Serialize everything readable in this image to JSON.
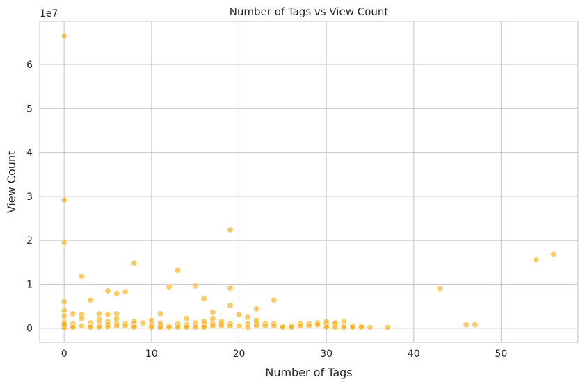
{
  "chart_data": {
    "type": "scatter",
    "title": "Number of Tags vs View Count",
    "xlabel": "Number of Tags",
    "ylabel": "View Count",
    "y_offset_label": "1e7",
    "xlim": [
      -2.8,
      58.8
    ],
    "ylim": [
      -0.32,
      6.98
    ],
    "xticks": [
      0,
      10,
      20,
      30,
      40,
      50
    ],
    "yticks": [
      0,
      1,
      2,
      3,
      4,
      5,
      6
    ],
    "grid": true,
    "color": "#FFA500",
    "x": [
      0,
      0,
      0,
      0,
      0,
      0,
      0,
      0,
      0,
      0,
      0,
      0,
      0,
      1,
      1,
      1,
      1,
      2,
      2,
      2,
      2,
      3,
      3,
      3,
      3,
      4,
      4,
      4,
      4,
      4,
      5,
      5,
      5,
      5,
      5,
      6,
      6,
      6,
      6,
      6,
      7,
      7,
      7,
      8,
      8,
      8,
      8,
      8,
      9,
      10,
      10,
      10,
      10,
      11,
      11,
      11,
      11,
      11,
      12,
      12,
      12,
      13,
      13,
      13,
      13,
      14,
      14,
      14,
      14,
      15,
      15,
      15,
      15,
      16,
      16,
      16,
      16,
      16,
      17,
      17,
      17,
      17,
      18,
      18,
      18,
      19,
      19,
      19,
      19,
      19,
      20,
      20,
      21,
      21,
      21,
      22,
      22,
      22,
      22,
      23,
      23,
      24,
      24,
      24,
      25,
      25,
      26,
      26,
      27,
      27,
      28,
      28,
      29,
      29,
      30,
      30,
      30,
      30,
      31,
      31,
      31,
      32,
      32,
      32,
      33,
      33,
      34,
      34,
      35,
      37,
      43,
      46,
      47,
      54,
      56
    ],
    "y": [
      6.65,
      2.92,
      1.95,
      0.6,
      0.4,
      0.28,
      0.15,
      0.1,
      0.05,
      0.02,
      0.01,
      0.12,
      0.08,
      0.33,
      0.1,
      0.05,
      0.02,
      1.18,
      0.31,
      0.22,
      0.05,
      0.64,
      0.12,
      0.05,
      0.02,
      0.33,
      0.2,
      0.1,
      0.05,
      0.02,
      0.85,
      0.31,
      0.15,
      0.08,
      0.03,
      0.79,
      0.33,
      0.22,
      0.1,
      0.05,
      0.83,
      0.1,
      0.05,
      1.48,
      0.15,
      0.1,
      0.05,
      0.02,
      0.12,
      0.18,
      0.1,
      0.06,
      0.02,
      0.33,
      0.12,
      0.08,
      0.04,
      0.01,
      0.94,
      0.05,
      0.02,
      1.32,
      0.1,
      0.06,
      0.02,
      0.22,
      0.08,
      0.05,
      0.02,
      0.96,
      0.12,
      0.06,
      0.02,
      0.67,
      0.15,
      0.1,
      0.05,
      0.02,
      0.36,
      0.22,
      0.1,
      0.05,
      0.15,
      0.1,
      0.05,
      2.24,
      0.91,
      0.52,
      0.1,
      0.05,
      0.31,
      0.05,
      0.25,
      0.1,
      0.02,
      0.44,
      0.18,
      0.1,
      0.05,
      0.1,
      0.05,
      0.64,
      0.1,
      0.05,
      0.05,
      0.02,
      0.05,
      0.02,
      0.1,
      0.05,
      0.1,
      0.05,
      0.12,
      0.08,
      0.15,
      0.1,
      0.05,
      0.02,
      0.12,
      0.1,
      0.02,
      0.15,
      0.05,
      0.02,
      0.05,
      0.02,
      0.05,
      0.02,
      0.02,
      0.02,
      0.9,
      0.08,
      0.08,
      1.56,
      1.68
    ]
  }
}
